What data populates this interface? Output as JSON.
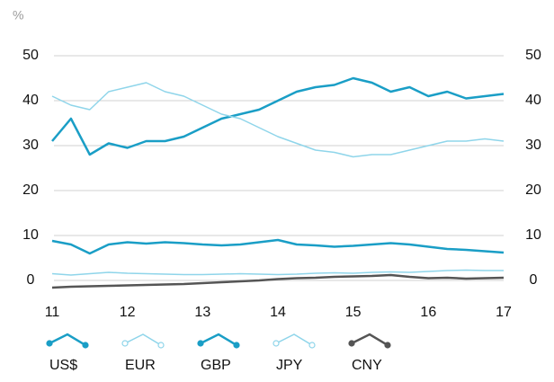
{
  "chart_data": {
    "type": "line",
    "y_label": "%",
    "x": [
      11,
      11.25,
      11.5,
      11.75,
      12,
      12.25,
      12.5,
      12.75,
      13,
      13.25,
      13.5,
      13.75,
      14,
      14.25,
      14.5,
      14.75,
      15,
      15.25,
      15.5,
      15.75,
      16,
      16.25,
      16.5,
      16.75,
      17
    ],
    "xlim": [
      11,
      17
    ],
    "xticks": [
      11,
      12,
      13,
      14,
      15,
      16,
      17
    ],
    "ylim": [
      -2,
      50
    ],
    "yticks": [
      0,
      10,
      20,
      30,
      40,
      50
    ],
    "grid": true,
    "series": [
      {
        "name": "US$",
        "color": "#1a9ec6",
        "values": [
          31,
          36,
          28,
          30.5,
          29.5,
          31,
          31,
          32,
          34,
          36,
          37,
          38,
          40,
          42,
          43,
          43.5,
          45,
          44,
          42,
          43,
          41,
          42,
          40.5,
          41,
          41.5
        ]
      },
      {
        "name": "EUR",
        "color": "#8fd5ea",
        "values": [
          41,
          39,
          38,
          42,
          43,
          44,
          42,
          41,
          39,
          37,
          36,
          34,
          32,
          30.5,
          29,
          28.5,
          27.5,
          28,
          28,
          29,
          30,
          31,
          31,
          31.5,
          31
        ]
      },
      {
        "name": "GBP",
        "color": "#1a9ec6",
        "values": [
          8.8,
          8,
          6,
          8,
          8.5,
          8.2,
          8.5,
          8.3,
          8,
          7.8,
          8,
          8.5,
          9,
          8,
          7.8,
          7.5,
          7.7,
          8,
          8.3,
          8,
          7.5,
          7,
          6.8,
          6.5,
          6.2
        ]
      },
      {
        "name": "JPY",
        "color": "#8fd5ea",
        "values": [
          1.5,
          1.2,
          1.5,
          1.8,
          1.6,
          1.5,
          1.4,
          1.3,
          1.3,
          1.4,
          1.5,
          1.4,
          1.3,
          1.4,
          1.6,
          1.7,
          1.6,
          1.8,
          1.9,
          1.8,
          2,
          2.2,
          2.3,
          2.2,
          2.2
        ]
      },
      {
        "name": "CNY",
        "color": "#555555",
        "values": [
          -1.6,
          -1.4,
          -1.3,
          -1.2,
          -1.1,
          -1,
          -0.9,
          -0.8,
          -0.6,
          -0.4,
          -0.2,
          0,
          0.3,
          0.5,
          0.6,
          0.8,
          0.9,
          1,
          1.2,
          0.8,
          0.5,
          0.6,
          0.4,
          0.5,
          0.6
        ]
      }
    ]
  }
}
